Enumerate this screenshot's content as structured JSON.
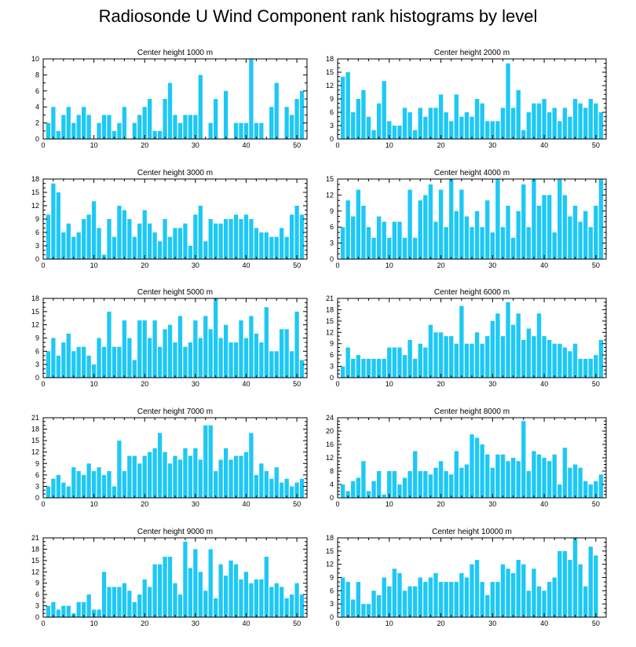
{
  "title": "Radiosonde U Wind Component rank histograms by level",
  "bar_color": "#1ec8f5",
  "chart_data": [
    {
      "type": "bar",
      "title": "Center height 1000 m",
      "xlim": [
        0,
        52
      ],
      "ylim": [
        0,
        10
      ],
      "xticks": [
        0,
        10,
        20,
        30,
        40,
        50
      ],
      "yticks": [
        0,
        2,
        4,
        6,
        8,
        10
      ],
      "x": [
        1,
        2,
        3,
        4,
        5,
        6,
        7,
        8,
        9,
        10,
        11,
        12,
        13,
        14,
        15,
        16,
        17,
        18,
        19,
        20,
        21,
        22,
        23,
        24,
        25,
        26,
        27,
        28,
        29,
        30,
        31,
        32,
        33,
        34,
        35,
        36,
        37,
        38,
        39,
        40,
        41,
        42,
        43,
        44,
        45,
        46,
        47,
        48,
        49,
        50,
        51
      ],
      "values": [
        2,
        4,
        1,
        3,
        4,
        2,
        3,
        4,
        3,
        0,
        2,
        3,
        3,
        1,
        2,
        4,
        0,
        2,
        3,
        4,
        5,
        1,
        1,
        5,
        7,
        3,
        2,
        3,
        3,
        3,
        8,
        0,
        2,
        5,
        0,
        6,
        0,
        2,
        2,
        2,
        10,
        2,
        2,
        0,
        4,
        7,
        0,
        4,
        3,
        5,
        6
      ]
    },
    {
      "type": "bar",
      "title": "Center height 2000 m",
      "xlim": [
        0,
        52
      ],
      "ylim": [
        0,
        18
      ],
      "xticks": [
        0,
        10,
        20,
        30,
        40,
        50
      ],
      "yticks": [
        0,
        3,
        6,
        9,
        12,
        15,
        18
      ],
      "x": [
        1,
        2,
        3,
        4,
        5,
        6,
        7,
        8,
        9,
        10,
        11,
        12,
        13,
        14,
        15,
        16,
        17,
        18,
        19,
        20,
        21,
        22,
        23,
        24,
        25,
        26,
        27,
        28,
        29,
        30,
        31,
        32,
        33,
        34,
        35,
        36,
        37,
        38,
        39,
        40,
        41,
        42,
        43,
        44,
        45,
        46,
        47,
        48,
        49,
        50,
        51
      ],
      "values": [
        14,
        15,
        6,
        9,
        11,
        5,
        2,
        8,
        13,
        4,
        3,
        3,
        7,
        6,
        2,
        7,
        5,
        7,
        7,
        10,
        6,
        4,
        10,
        5,
        6,
        5,
        9,
        8,
        4,
        4,
        4,
        7,
        17,
        7,
        11,
        2,
        6,
        8,
        8,
        9,
        6,
        7,
        4,
        7,
        5,
        9,
        8,
        7,
        9,
        8,
        6
      ]
    },
    {
      "type": "bar",
      "title": "Center height 3000 m",
      "xlim": [
        0,
        52
      ],
      "ylim": [
        0,
        18
      ],
      "xticks": [
        0,
        10,
        20,
        30,
        40,
        50
      ],
      "yticks": [
        0,
        3,
        6,
        9,
        12,
        15,
        18
      ],
      "x": [
        1,
        2,
        3,
        4,
        5,
        6,
        7,
        8,
        9,
        10,
        11,
        12,
        13,
        14,
        15,
        16,
        17,
        18,
        19,
        20,
        21,
        22,
        23,
        24,
        25,
        26,
        27,
        28,
        29,
        30,
        31,
        32,
        33,
        34,
        35,
        36,
        37,
        38,
        39,
        40,
        41,
        42,
        43,
        44,
        45,
        46,
        47,
        48,
        49,
        50,
        51
      ],
      "values": [
        10,
        17,
        15,
        6,
        8,
        5,
        6,
        9,
        10,
        13,
        7,
        1,
        9,
        5,
        12,
        11,
        9,
        5,
        8,
        11,
        8,
        6,
        4,
        9,
        5,
        7,
        7,
        8,
        3,
        10,
        12,
        4,
        9,
        8,
        8,
        9,
        9,
        10,
        9,
        10,
        9,
        7,
        6,
        6,
        5,
        5,
        7,
        5,
        10,
        12,
        10
      ]
    },
    {
      "type": "bar",
      "title": "Center height 4000 m",
      "xlim": [
        0,
        52
      ],
      "ylim": [
        0,
        15
      ],
      "xticks": [
        0,
        10,
        20,
        30,
        40,
        50
      ],
      "yticks": [
        0,
        3,
        6,
        9,
        12,
        15
      ],
      "x": [
        1,
        2,
        3,
        4,
        5,
        6,
        7,
        8,
        9,
        10,
        11,
        12,
        13,
        14,
        15,
        16,
        17,
        18,
        19,
        20,
        21,
        22,
        23,
        24,
        25,
        26,
        27,
        28,
        29,
        30,
        31,
        32,
        33,
        34,
        35,
        36,
        37,
        38,
        39,
        40,
        41,
        42,
        43,
        44,
        45,
        46,
        47,
        48,
        49,
        50,
        51
      ],
      "values": [
        6,
        11,
        8,
        13,
        10,
        6,
        4,
        8,
        7,
        4,
        7,
        7,
        4,
        13,
        4,
        11,
        12,
        14,
        7,
        13,
        6,
        15,
        9,
        13,
        8,
        6,
        9,
        6,
        11,
        5,
        15,
        6,
        10,
        4,
        9,
        14,
        6,
        15,
        10,
        12,
        12,
        5,
        15,
        12,
        8,
        10,
        7,
        9,
        6,
        10,
        15
      ]
    },
    {
      "type": "bar",
      "title": "Center height 5000 m",
      "xlim": [
        0,
        52
      ],
      "ylim": [
        0,
        18
      ],
      "xticks": [
        0,
        10,
        20,
        30,
        40,
        50
      ],
      "yticks": [
        0,
        3,
        6,
        9,
        12,
        15,
        18
      ],
      "x": [
        1,
        2,
        3,
        4,
        5,
        6,
        7,
        8,
        9,
        10,
        11,
        12,
        13,
        14,
        15,
        16,
        17,
        18,
        19,
        20,
        21,
        22,
        23,
        24,
        25,
        26,
        27,
        28,
        29,
        30,
        31,
        32,
        33,
        34,
        35,
        36,
        37,
        38,
        39,
        40,
        41,
        42,
        43,
        44,
        45,
        46,
        47,
        48,
        49,
        50,
        51
      ],
      "values": [
        6,
        9,
        5,
        8,
        10,
        6,
        7,
        7,
        5,
        3,
        9,
        7,
        15,
        7,
        7,
        13,
        9,
        4,
        13,
        13,
        9,
        13,
        7,
        11,
        12,
        8,
        14,
        7,
        8,
        13,
        9,
        14,
        11,
        18,
        9,
        12,
        8,
        8,
        13,
        9,
        14,
        10,
        8,
        16,
        6,
        6,
        11,
        11,
        6,
        15,
        4
      ]
    },
    {
      "type": "bar",
      "title": "Center height 6000 m",
      "xlim": [
        0,
        52
      ],
      "ylim": [
        0,
        21
      ],
      "xticks": [
        0,
        10,
        20,
        30,
        40,
        50
      ],
      "yticks": [
        0,
        3,
        6,
        9,
        12,
        15,
        18,
        21
      ],
      "x": [
        1,
        2,
        3,
        4,
        5,
        6,
        7,
        8,
        9,
        10,
        11,
        12,
        13,
        14,
        15,
        16,
        17,
        18,
        19,
        20,
        21,
        22,
        23,
        24,
        25,
        26,
        27,
        28,
        29,
        30,
        31,
        32,
        33,
        34,
        35,
        36,
        37,
        38,
        39,
        40,
        41,
        42,
        43,
        44,
        45,
        46,
        47,
        48,
        49,
        50,
        51
      ],
      "values": [
        3,
        8,
        5,
        6,
        5,
        5,
        5,
        5,
        5,
        8,
        8,
        8,
        6,
        10,
        5,
        9,
        8,
        14,
        12,
        12,
        11,
        11,
        9,
        19,
        9,
        9,
        12,
        9,
        11,
        15,
        17,
        11,
        20,
        14,
        17,
        10,
        13,
        11,
        17,
        11,
        10,
        9,
        9,
        8,
        7,
        9,
        5,
        5,
        5,
        6,
        10
      ]
    },
    {
      "type": "bar",
      "title": "Center height 7000 m",
      "xlim": [
        0,
        52
      ],
      "ylim": [
        0,
        21
      ],
      "xticks": [
        0,
        10,
        20,
        30,
        40,
        50
      ],
      "yticks": [
        0,
        3,
        6,
        9,
        12,
        15,
        18,
        21
      ],
      "x": [
        1,
        2,
        3,
        4,
        5,
        6,
        7,
        8,
        9,
        10,
        11,
        12,
        13,
        14,
        15,
        16,
        17,
        18,
        19,
        20,
        21,
        22,
        23,
        24,
        25,
        26,
        27,
        28,
        29,
        30,
        31,
        32,
        33,
        34,
        35,
        36,
        37,
        38,
        39,
        40,
        41,
        42,
        43,
        44,
        45,
        46,
        47,
        48,
        49,
        50,
        51
      ],
      "values": [
        3,
        5,
        6,
        4,
        3,
        8,
        7,
        6,
        9,
        7,
        8,
        6,
        7,
        3,
        15,
        7,
        11,
        11,
        9,
        11,
        12,
        13,
        17,
        12,
        9,
        11,
        10,
        13,
        11,
        13,
        10,
        19,
        19,
        7,
        10,
        13,
        10,
        11,
        11,
        12,
        17,
        6,
        9,
        7,
        5,
        8,
        4,
        5,
        3,
        4,
        5
      ]
    },
    {
      "type": "bar",
      "title": "Center height 8000 m",
      "xlim": [
        0,
        52
      ],
      "ylim": [
        0,
        24
      ],
      "xticks": [
        0,
        10,
        20,
        30,
        40,
        50
      ],
      "yticks": [
        0,
        4,
        8,
        12,
        16,
        20,
        24
      ],
      "x": [
        1,
        2,
        3,
        4,
        5,
        6,
        7,
        8,
        9,
        10,
        11,
        12,
        13,
        14,
        15,
        16,
        17,
        18,
        19,
        20,
        21,
        22,
        23,
        24,
        25,
        26,
        27,
        28,
        29,
        30,
        31,
        32,
        33,
        34,
        35,
        36,
        37,
        38,
        39,
        40,
        41,
        42,
        43,
        44,
        45,
        46,
        47,
        48,
        49,
        50,
        51
      ],
      "values": [
        4,
        2,
        5,
        6,
        11,
        2,
        5,
        8,
        1,
        8,
        8,
        4,
        6,
        8,
        14,
        8,
        8,
        7,
        9,
        11,
        8,
        7,
        14,
        9,
        10,
        19,
        18,
        16,
        13,
        9,
        13,
        13,
        11,
        12,
        11,
        23,
        8,
        14,
        13,
        12,
        11,
        13,
        4,
        15,
        9,
        10,
        9,
        5,
        4,
        5,
        7
      ]
    },
    {
      "type": "bar",
      "title": "Center height 9000 m",
      "xlim": [
        0,
        52
      ],
      "ylim": [
        0,
        21
      ],
      "xticks": [
        0,
        10,
        20,
        30,
        40,
        50
      ],
      "yticks": [
        0,
        3,
        6,
        9,
        12,
        15,
        18,
        21
      ],
      "x": [
        1,
        2,
        3,
        4,
        5,
        6,
        7,
        8,
        9,
        10,
        11,
        12,
        13,
        14,
        15,
        16,
        17,
        18,
        19,
        20,
        21,
        22,
        23,
        24,
        25,
        26,
        27,
        28,
        29,
        30,
        31,
        32,
        33,
        34,
        35,
        36,
        37,
        38,
        39,
        40,
        41,
        42,
        43,
        44,
        45,
        46,
        47,
        48,
        49,
        50,
        51
      ],
      "values": [
        3,
        4,
        2,
        3,
        3,
        1,
        4,
        4,
        6,
        2,
        2,
        12,
        8,
        8,
        8,
        9,
        7,
        4,
        6,
        10,
        8,
        14,
        14,
        16,
        16,
        9,
        6,
        20,
        13,
        18,
        12,
        7,
        18,
        5,
        14,
        11,
        15,
        14,
        10,
        12,
        9,
        10,
        10,
        16,
        8,
        9,
        8,
        5,
        6,
        9,
        6
      ]
    },
    {
      "type": "bar",
      "title": "Center height 10000 m",
      "xlim": [
        0,
        52
      ],
      "ylim": [
        0,
        18
      ],
      "xticks": [
        0,
        10,
        20,
        30,
        40,
        50
      ],
      "yticks": [
        0,
        3,
        6,
        9,
        12,
        15,
        18
      ],
      "x": [
        1,
        2,
        3,
        4,
        5,
        6,
        7,
        8,
        9,
        10,
        11,
        12,
        13,
        14,
        15,
        16,
        17,
        18,
        19,
        20,
        21,
        22,
        23,
        24,
        25,
        26,
        27,
        28,
        29,
        30,
        31,
        32,
        33,
        34,
        35,
        36,
        37,
        38,
        39,
        40,
        41,
        42,
        43,
        44,
        45,
        46,
        47,
        48,
        49,
        50,
        51
      ],
      "values": [
        9,
        8,
        4,
        8,
        3,
        3,
        6,
        5,
        9,
        7,
        11,
        10,
        6,
        7,
        7,
        9,
        8,
        9,
        10,
        8,
        8,
        8,
        8,
        10,
        9,
        12,
        13,
        8,
        5,
        8,
        8,
        12,
        11,
        10,
        13,
        12,
        6,
        11,
        7,
        6,
        8,
        9,
        15,
        15,
        13,
        18,
        12,
        7,
        16,
        14,
        0
      ]
    }
  ]
}
